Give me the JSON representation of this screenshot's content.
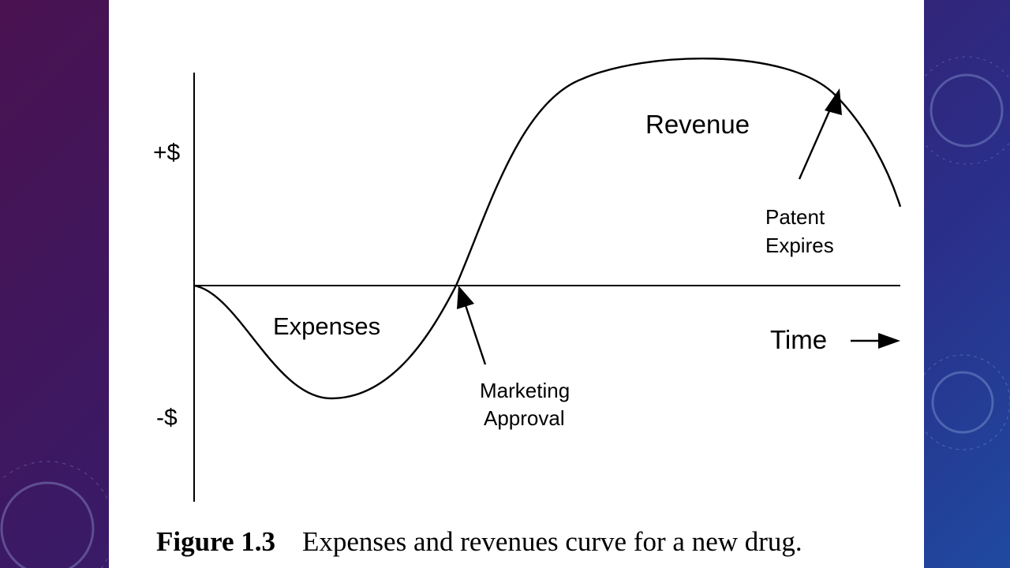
{
  "figure": {
    "y_axis_positive_label": "+$",
    "y_axis_negative_label": "-$",
    "x_axis_label": "Time",
    "curve_labels": {
      "revenue": "Revenue",
      "expenses": "Expenses"
    },
    "annotations": {
      "patent_line1": "Patent",
      "patent_line2": "Expires",
      "approval_line1": "Marketing",
      "approval_line2": "Approval"
    },
    "caption_number": "Figure 1.3",
    "caption_text": "Expenses and revenues curve for a new drug."
  }
}
